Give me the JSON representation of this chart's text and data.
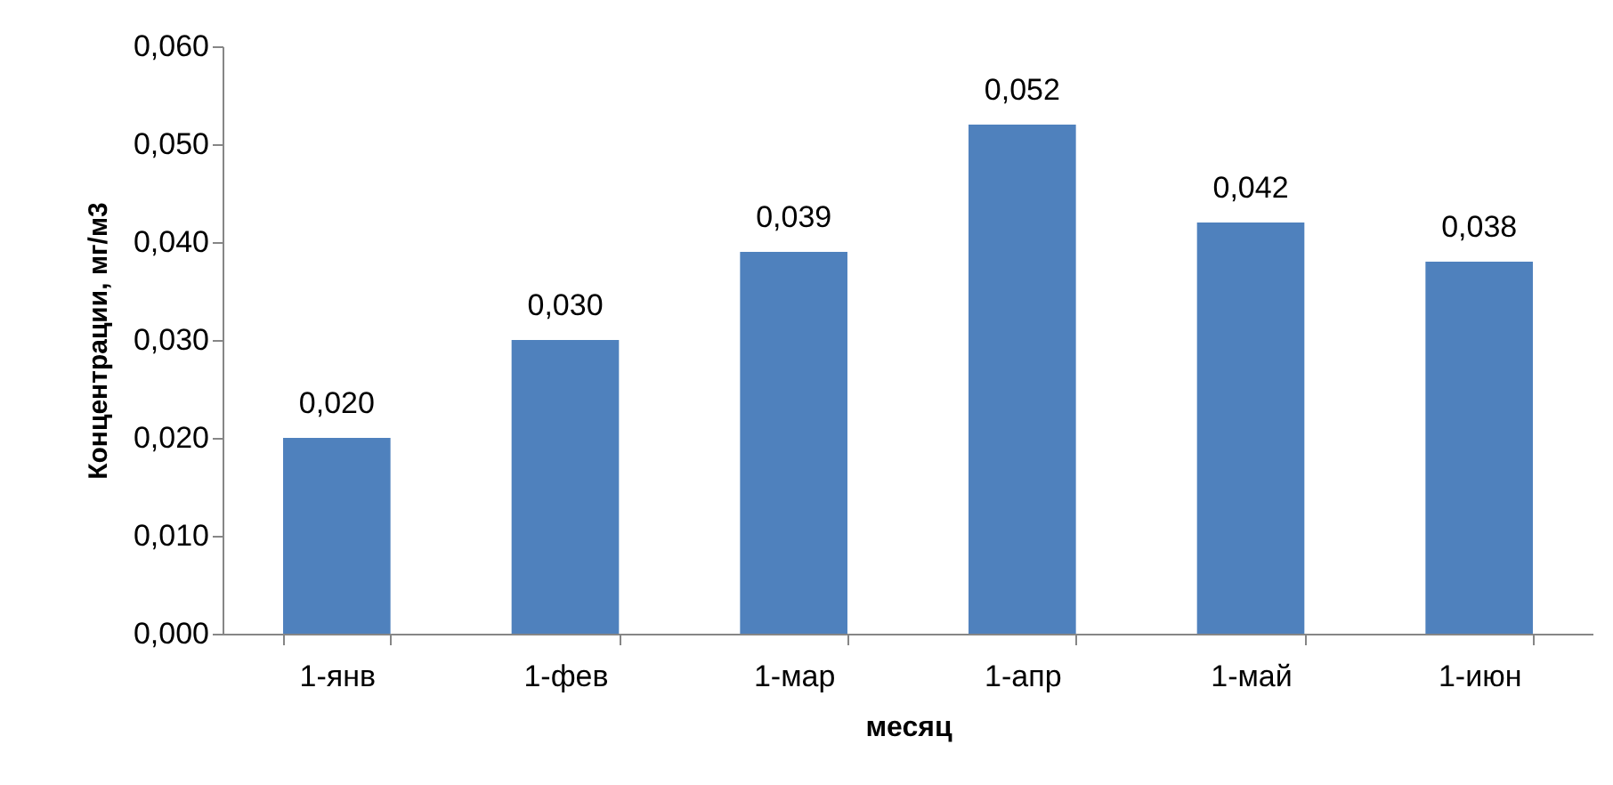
{
  "chart_data": {
    "type": "bar",
    "xlabel": "месяц",
    "ylabel": "Концентрации, мг/м3",
    "categories": [
      "1-янв",
      "1-фев",
      "1-мар",
      "1-апр",
      "1-май",
      "1-июн"
    ],
    "values": [
      0.02,
      0.03,
      0.039,
      0.052,
      0.042,
      0.038
    ],
    "value_labels": [
      "0,020",
      "0,030",
      "0,039",
      "0,052",
      "0,042",
      "0,038"
    ],
    "color": "#4f81bd",
    "ylim": [
      0,
      0.06
    ],
    "yticks": [
      {
        "value": 0,
        "label": "0,000"
      },
      {
        "value": 0.01,
        "label": "0,010"
      },
      {
        "value": 0.02,
        "label": "0,020"
      },
      {
        "value": 0.03,
        "label": "0,030"
      },
      {
        "value": 0.04,
        "label": "0,040"
      },
      {
        "value": 0.05,
        "label": "0,050"
      },
      {
        "value": 0.06,
        "label": "0,060"
      }
    ],
    "grid": false
  }
}
